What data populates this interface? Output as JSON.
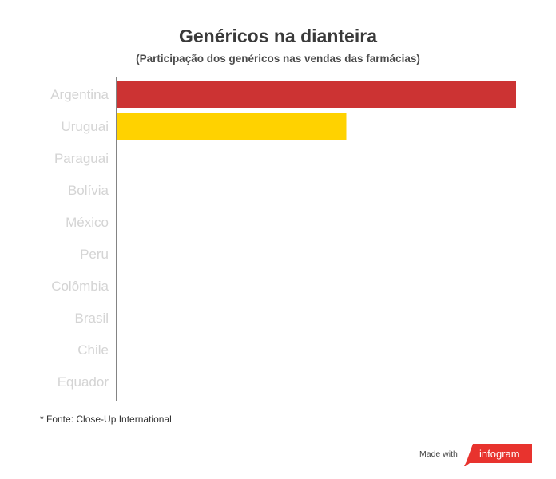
{
  "chart_data": {
    "type": "bar",
    "orientation": "horizontal",
    "title": "Genéricos na dianteira",
    "subtitle": "(Participação dos genéricos nas vendas das farmácias)",
    "categories": [
      "Argentina",
      "Uruguai",
      "Paraguai",
      "Bolívia",
      "México",
      "Peru",
      "Colômbia",
      "Brasil",
      "Chile",
      "Equador"
    ],
    "values": [
      100,
      57.5,
      0,
      0,
      0,
      0,
      0,
      0,
      0,
      0
    ],
    "colors": [
      "#cc3333",
      "#ffd200"
    ],
    "xlim": [
      0,
      100
    ],
    "grid": false,
    "legend": "none"
  },
  "footnote": "* Fonte: Close-Up International",
  "credit": {
    "made_with": "Made with",
    "brand": "infogram"
  }
}
